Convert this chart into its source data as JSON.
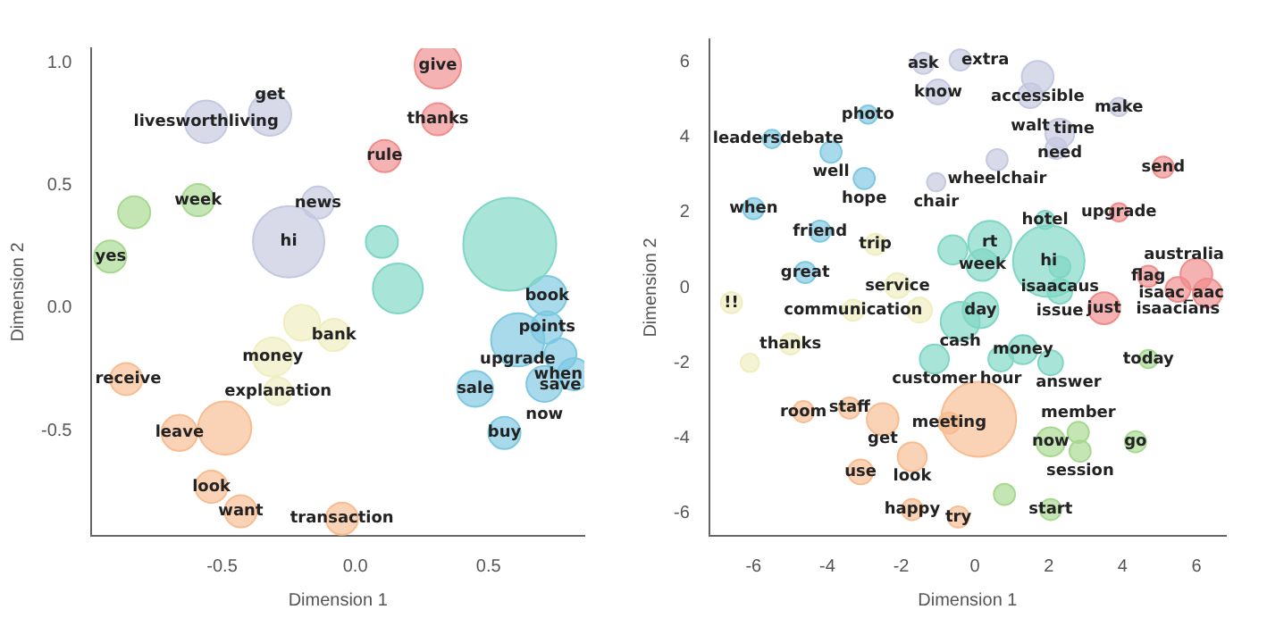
{
  "chart_data": [
    {
      "type": "bubble",
      "xlabel": "Dimension 1",
      "ylabel": "Dimension 2",
      "xlim": [
        -0.99,
        0.86
      ],
      "ylim": [
        -0.93,
        1.06
      ],
      "xticks": [
        {
          "value": -0.5,
          "label": "-0.5"
        },
        {
          "value": 0,
          "label": "0.0"
        },
        {
          "value": 0.5,
          "label": "0.5"
        }
      ],
      "yticks": [
        {
          "value": -0.5,
          "label": "-0.5"
        },
        {
          "value": 0,
          "label": "0.0"
        },
        {
          "value": 0.5,
          "label": "0.5"
        },
        {
          "value": 1,
          "label": "1.0"
        }
      ],
      "grid": false,
      "legend": false,
      "series": [
        {
          "color": "#f08c8c",
          "x": [
            0.31,
            0.31,
            0.11
          ],
          "values": [
            0.99,
            0.77,
            0.62
          ],
          "sizes": [
            0.25,
            0.12,
            0.12
          ],
          "value_labels": [
            "give",
            "thanks",
            "rule"
          ]
        },
        {
          "color": "#c4c8e0",
          "x": [
            -0.56,
            -0.32,
            -0.14,
            -0.25
          ],
          "values": [
            0.76,
            0.79,
            0.43,
            0.27
          ],
          "sizes": [
            0.21,
            0.21,
            0.12,
            0.59
          ],
          "value_labels": [
            "livesworthliving",
            "get",
            "news",
            "hi"
          ]
        },
        {
          "color": "#a6d88e",
          "x": [
            -0.59,
            -0.83,
            -0.92
          ],
          "values": [
            0.44,
            0.39,
            0.21
          ],
          "sizes": [
            0.12,
            0.12,
            0.12
          ],
          "value_labels": [
            "week",
            null,
            "yes"
          ]
        },
        {
          "color": "#7ed6c4",
          "x": [
            0.1,
            0.58,
            0.16
          ],
          "values": [
            0.27,
            0.26,
            0.08
          ],
          "sizes": [
            0.12,
            1,
            0.29
          ],
          "value_labels": [
            null,
            null,
            null
          ]
        },
        {
          "color": "#7cc8e2",
          "x": [
            0.72,
            0.72,
            0.61,
            0.77,
            0.82,
            0.71,
            0.45,
            0.56
          ],
          "values": [
            0.05,
            -0.08,
            -0.13,
            -0.19,
            -0.27,
            -0.31,
            -0.33,
            -0.51
          ],
          "sizes": [
            0.18,
            0.12,
            0.33,
            0.12,
            0.12,
            0.15,
            0.15,
            0.12
          ],
          "value_labels": [
            "book",
            "points",
            "upgrade",
            "save",
            "when",
            "now",
            "sale",
            "buy"
          ]
        },
        {
          "color": "#eeeebe",
          "x": [
            -0.2,
            -0.08,
            -0.31,
            -0.29
          ],
          "values": [
            -0.06,
            -0.11,
            -0.2,
            -0.34
          ],
          "sizes": [
            0.15,
            0.12,
            0.18,
            0.09
          ],
          "value_labels": [
            null,
            "bank",
            "money",
            "explanation"
          ]
        },
        {
          "color": "#f8bc90",
          "x": [
            -0.86,
            -0.66,
            -0.49,
            -0.54,
            -0.43,
            -0.05
          ],
          "values": [
            -0.29,
            -0.51,
            -0.49,
            -0.73,
            -0.83,
            -0.86
          ],
          "sizes": [
            0.12,
            0.15,
            0.33,
            0.12,
            0.12,
            0.12
          ],
          "value_labels": [
            "receive",
            "leave",
            null,
            "look",
            "want",
            "transaction"
          ]
        }
      ]
    },
    {
      "type": "bubble",
      "xlabel": "Dimension 1",
      "ylabel": "Dimension 2",
      "xlim": [
        -7.2,
        6.8
      ],
      "ylim": [
        -6.6,
        6.6
      ],
      "xticks": [
        -6,
        -4,
        -2,
        0,
        2,
        4,
        6
      ],
      "yticks": [
        -6,
        -4,
        -2,
        0,
        2,
        4,
        6
      ],
      "grid": false,
      "legend": false,
      "series": [
        {
          "color": "#c4c8e0",
          "x": [
            -1.4,
            -0.4,
            1.7,
            1.5,
            -1.0,
            3.9,
            2.3,
            2.2,
            0.6,
            -1.05
          ],
          "values": [
            5.96,
            6.05,
            5.6,
            5.1,
            5.2,
            4.8,
            4.1,
            3.7,
            3.4,
            2.8
          ],
          "sizes": [
            0.08,
            0.08,
            0.18,
            0.11,
            0.11,
            0.06,
            0.15,
            0.08,
            0.08,
            0.06
          ],
          "value_labels": [
            "ask",
            "extra",
            "accessible",
            "walt",
            "know",
            "make",
            "need",
            "time",
            "wheelchair",
            "chair"
          ]
        },
        {
          "color": "#7cc8e2",
          "x": [
            -2.9,
            -5.5,
            -3.9,
            -3.0,
            -6.0,
            -4.2,
            -4.6
          ],
          "values": [
            4.6,
            3.95,
            3.6,
            2.9,
            2.1,
            1.5,
            0.4
          ],
          "sizes": [
            0.06,
            0.06,
            0.08,
            0.08,
            0.08,
            0.08,
            0.08
          ],
          "value_labels": [
            "photo",
            "leadersdebate",
            "well",
            "hope",
            "when",
            "friend",
            "great"
          ]
        },
        {
          "color": "#7ed6c4",
          "x": [
            1.9,
            0.4,
            2.0,
            -0.6,
            2.3,
            0.2,
            2.3,
            0.15,
            -0.4,
            -1.1,
            0.7,
            1.3,
            2.05
          ],
          "values": [
            1.8,
            1.2,
            0.7,
            1.0,
            0.55,
            0.6,
            -0.1,
            -0.6,
            -0.9,
            -1.9,
            -1.9,
            -1.65,
            -2.0
          ],
          "sizes": [
            0.06,
            0.33,
            0.91,
            0.15,
            0.08,
            0.18,
            0.11,
            0.23,
            0.27,
            0.15,
            0.11,
            0.15,
            0.11
          ],
          "value_labels": [
            "hotel",
            "rt",
            "hi",
            null,
            "isaacaus",
            "week",
            "issue",
            "day",
            "cash",
            "customer",
            "hour",
            "money",
            "answer"
          ]
        },
        {
          "color": "#f08c8c",
          "x": [
            5.1,
            3.9,
            4.7,
            6.0,
            5.5,
            6.3,
            3.5
          ],
          "values": [
            3.2,
            2.0,
            0.3,
            0.35,
            -0.05,
            -0.15,
            -0.55
          ],
          "sizes": [
            0.08,
            0.06,
            0.08,
            0.18,
            0.11,
            0.15,
            0.18
          ],
          "value_labels": [
            "send",
            "upgrade",
            "flag",
            "australia",
            "isaacians",
            "isaac_aac",
            "just"
          ]
        },
        {
          "color": "#eeeebe",
          "x": [
            -2.7,
            -2.1,
            -6.6,
            -3.3,
            -1.5,
            -5.0,
            -6.1
          ],
          "values": [
            1.15,
            0.05,
            -0.4,
            -0.6,
            -0.6,
            -1.5,
            -2.0
          ],
          "sizes": [
            0.08,
            0.11,
            0.08,
            0.08,
            0.11,
            0.08,
            0.06
          ],
          "value_labels": [
            "trip",
            "service",
            "!!",
            "communication",
            null,
            "thanks",
            null
          ]
        },
        {
          "color": "#f8bc90",
          "x": [
            -4.65,
            -3.4,
            -2.5,
            -0.7,
            0.1,
            -1.7,
            -3.1,
            -1.7,
            -0.45
          ],
          "values": [
            -3.3,
            -3.2,
            -3.5,
            -3.6,
            -3.5,
            -4.5,
            -4.9,
            -5.9,
            -6.1
          ],
          "sizes": [
            0.08,
            0.08,
            0.18,
            0.08,
            1,
            0.15,
            0.11,
            0.08,
            0.08
          ],
          "value_labels": [
            "room",
            "staff",
            "get",
            "meeting",
            null,
            "look",
            "use",
            "happy",
            "try"
          ]
        },
        {
          "color": "#a6d88e",
          "x": [
            4.7,
            2.05,
            2.8,
            2.85,
            4.35,
            2.05,
            0.8
          ],
          "values": [
            -1.9,
            -4.1,
            -3.85,
            -4.35,
            -4.1,
            -5.9,
            -5.5
          ],
          "sizes": [
            0.06,
            0.15,
            0.08,
            0.08,
            0.08,
            0.08,
            0.08
          ],
          "value_labels": [
            "today",
            "now",
            "member",
            "session",
            "go",
            "start",
            null
          ]
        }
      ]
    }
  ]
}
